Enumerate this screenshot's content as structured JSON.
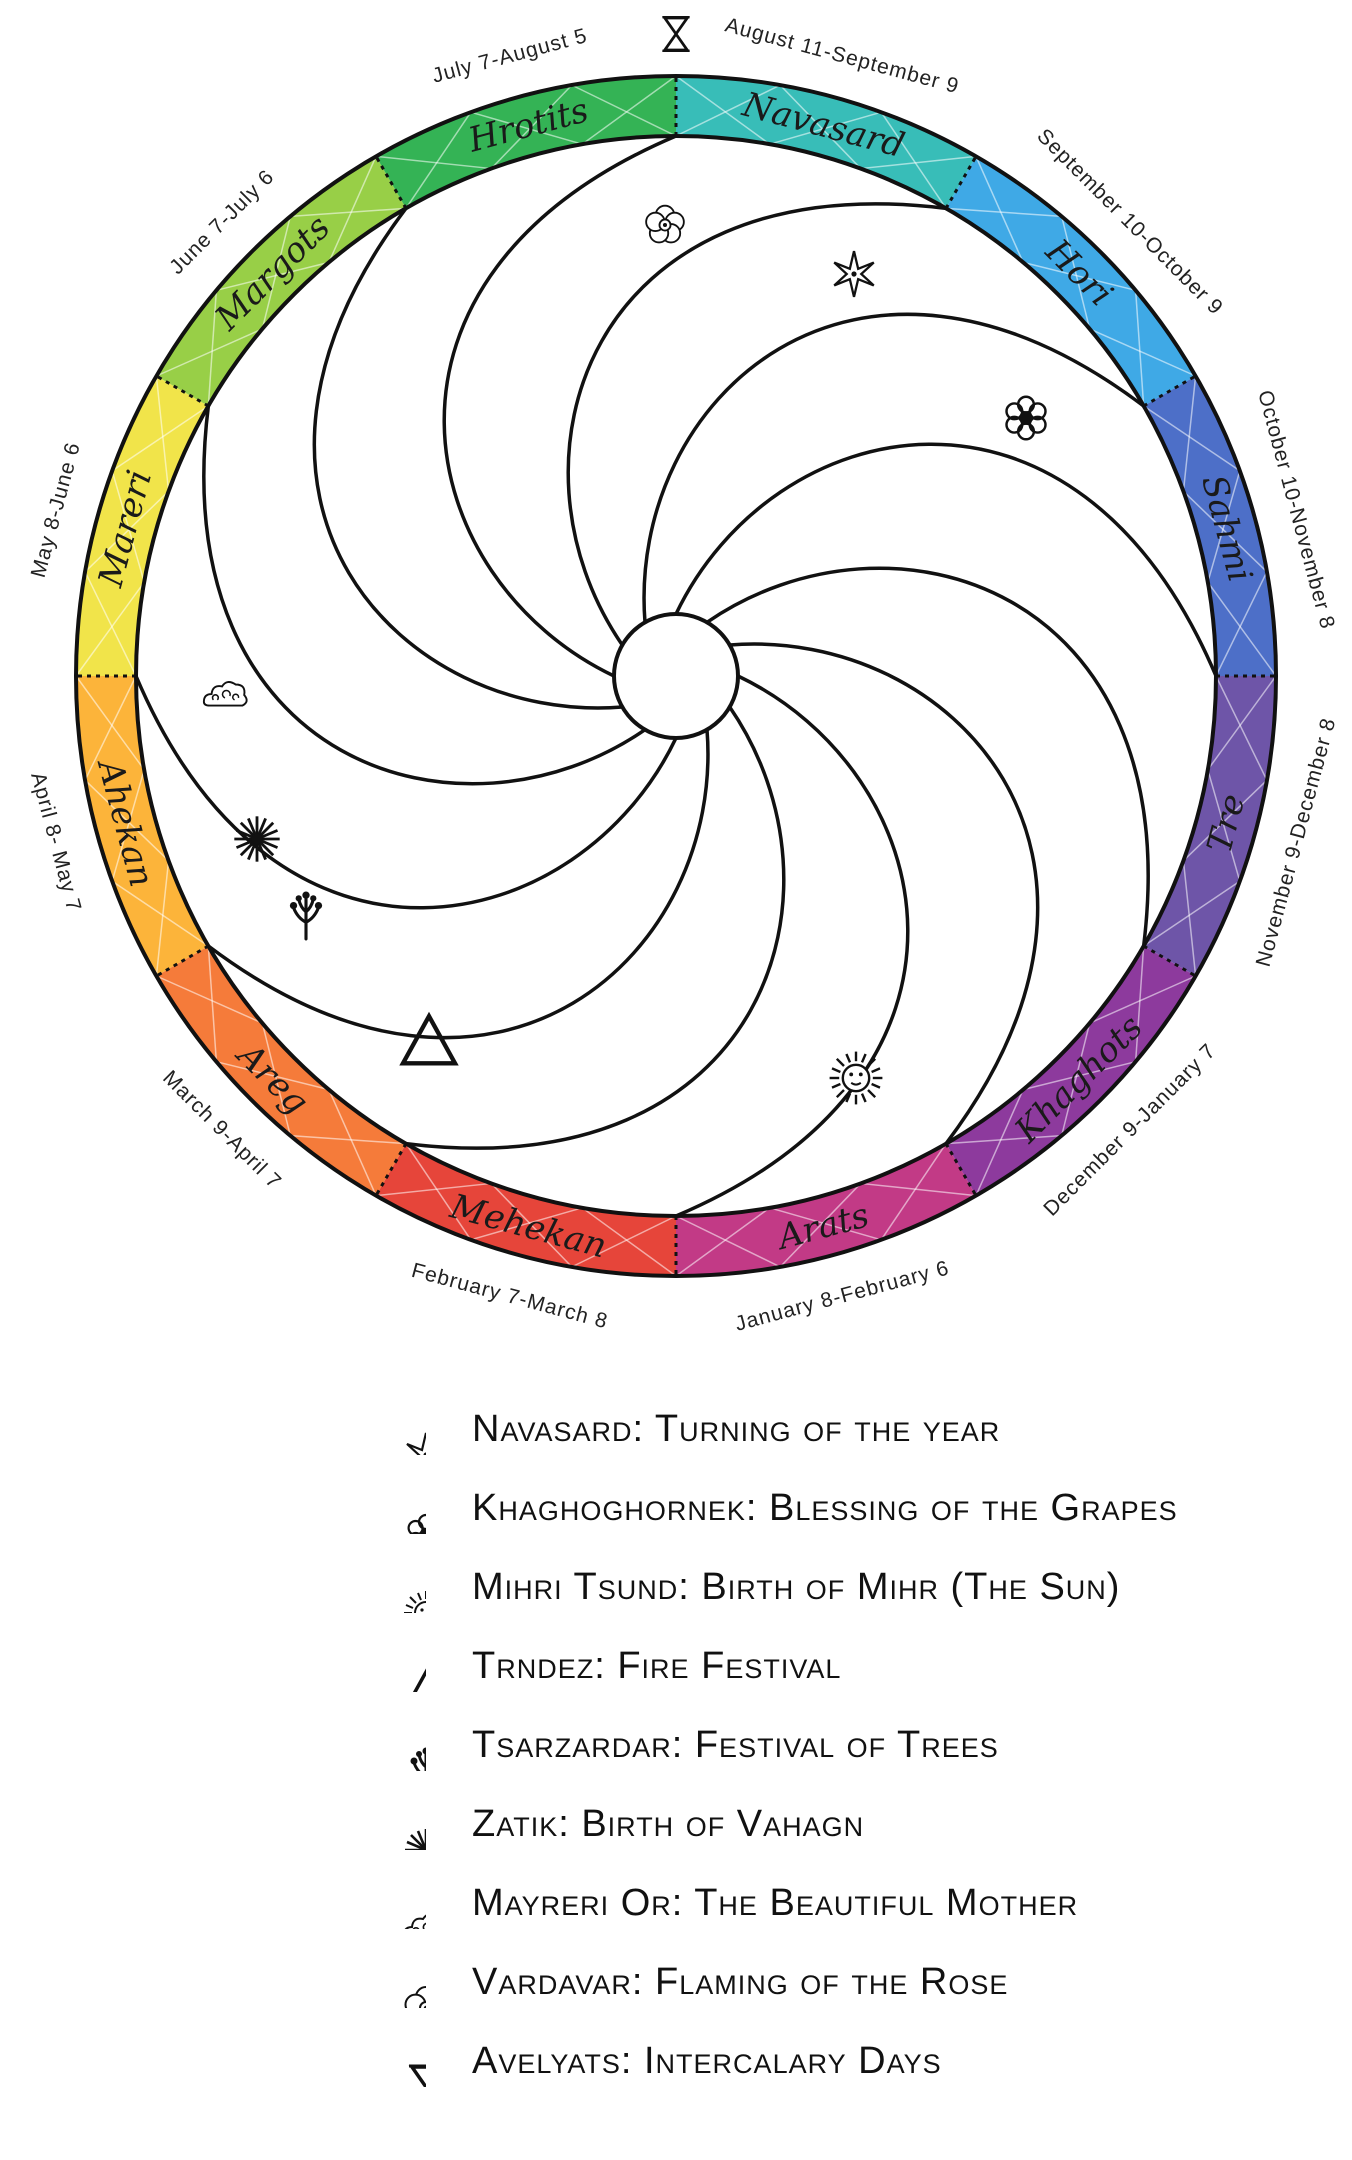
{
  "wheel": {
    "months": [
      {
        "name": "Navasard",
        "range": "August 11-September 9",
        "color": "#38bdb8"
      },
      {
        "name": "Hori",
        "range": "September 10-October 9",
        "color": "#3fa9e6"
      },
      {
        "name": "Sahmi",
        "range": "October 10-November 8",
        "color": "#4d6fc8"
      },
      {
        "name": "Tre",
        "range": "November 9-December 8",
        "color": "#6e55a8"
      },
      {
        "name": "Khaghots",
        "range": "December 9-January 7",
        "color": "#8d3a9d"
      },
      {
        "name": "Arats",
        "range": "January 8-February 6",
        "color": "#c23a86"
      },
      {
        "name": "Mehekan",
        "range": "February 7-March 8",
        "color": "#e6453a"
      },
      {
        "name": "Areg",
        "range": "March 9-April 7",
        "color": "#f57b3a"
      },
      {
        "name": "Ahekan",
        "range": "April 8- May 7",
        "color": "#fcb43a"
      },
      {
        "name": "Mareri",
        "range": "May 8-June 6",
        "color": "#f1e44a"
      },
      {
        "name": "Margots",
        "range": "June 7-July 6",
        "color": "#98cf47"
      },
      {
        "name": "Hrotits",
        "range": "July 7-August 5",
        "color": "#34b355"
      }
    ],
    "intercalary_icon": "hourglass-icon"
  },
  "legend": [
    {
      "icon": "star-icon",
      "label": "Navasard: Turning of the year"
    },
    {
      "icon": "grape-flower-icon",
      "label": "Khaghoghornek: Blessing of the Grapes"
    },
    {
      "icon": "sun-face-icon",
      "label": "Mihri Tsund: Birth of Mihr (The Sun)"
    },
    {
      "icon": "triangle-icon",
      "label": "Trndez: Fire Festival"
    },
    {
      "icon": "tree-icon",
      "label": "Tsarzardar: Festival of Trees"
    },
    {
      "icon": "starburst-icon",
      "label": "Zatik: Birth of Vahagn"
    },
    {
      "icon": "cloud-swirl-icon",
      "label": "Mayreri Or: The Beautiful Mother"
    },
    {
      "icon": "rose-icon",
      "label": "Vardavar: Flaming of the Rose"
    },
    {
      "icon": "hourglass-icon",
      "label": "Avelyats: Intercalary Days"
    }
  ]
}
